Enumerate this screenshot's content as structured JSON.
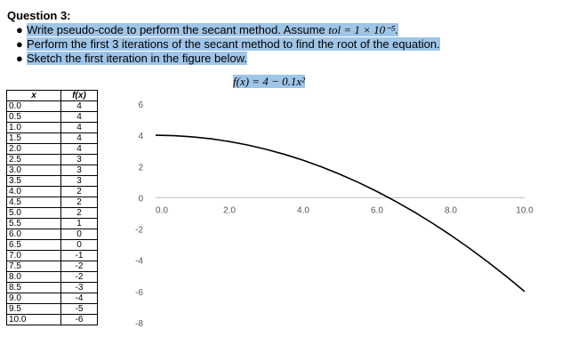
{
  "question_title": "Question 3:",
  "bullets": [
    {
      "text": "Write pseudo-code to perform the secant method. Assume ",
      "math": "tol = 1 × 10⁻⁵."
    },
    {
      "text": "Perform the first 3 iterations of the secant method to find the root of the equation."
    },
    {
      "text": "Sketch the first iteration in the figure below."
    }
  ],
  "formula": "f(x) = 4 − 0.1x²",
  "table": {
    "headers": [
      "x",
      "f(x)"
    ],
    "rows": [
      [
        "0.0",
        "4"
      ],
      [
        "0.5",
        "4"
      ],
      [
        "1.0",
        "4"
      ],
      [
        "1.5",
        "4"
      ],
      [
        "2.0",
        "4"
      ],
      [
        "2.5",
        "3"
      ],
      [
        "3.0",
        "3"
      ],
      [
        "3.5",
        "3"
      ],
      [
        "4.0",
        "2"
      ],
      [
        "4.5",
        "2"
      ],
      [
        "5.0",
        "2"
      ],
      [
        "5.5",
        "1"
      ],
      [
        "6.0",
        "0"
      ],
      [
        "6.5",
        "0"
      ],
      [
        "7.0",
        "-1"
      ],
      [
        "7.5",
        "-2"
      ],
      [
        "8.0",
        "-2"
      ],
      [
        "8.5",
        "-3"
      ],
      [
        "9.0",
        "-4"
      ],
      [
        "9.5",
        "-5"
      ],
      [
        "10.0",
        "-6"
      ]
    ]
  },
  "chart_data": {
    "type": "line",
    "title": "",
    "xlabel": "",
    "ylabel": "",
    "xlim": [
      0,
      10
    ],
    "ylim": [
      -8,
      6
    ],
    "x_ticks": [
      "0.0",
      "2.0",
      "4.0",
      "6.0",
      "8.0",
      "10.0"
    ],
    "y_ticks": [
      "6",
      "4",
      "2",
      "0",
      "-2",
      "-4",
      "-6",
      "-8"
    ],
    "grid": false,
    "series": [
      {
        "x": [
          0,
          0.5,
          1,
          1.5,
          2,
          2.5,
          3,
          3.5,
          4,
          4.5,
          5,
          5.5,
          6,
          6.5,
          7,
          7.5,
          8,
          8.5,
          9,
          9.5,
          10
        ],
        "y": [
          4,
          3.975,
          3.9,
          3.775,
          3.6,
          3.375,
          3.1,
          2.775,
          2.4,
          1.975,
          1.5,
          0.975,
          0.4,
          -0.225,
          -0.9,
          -1.625,
          -2.4,
          -3.225,
          -4.1,
          -5.025,
          -6
        ],
        "color": "#000000"
      }
    ]
  }
}
